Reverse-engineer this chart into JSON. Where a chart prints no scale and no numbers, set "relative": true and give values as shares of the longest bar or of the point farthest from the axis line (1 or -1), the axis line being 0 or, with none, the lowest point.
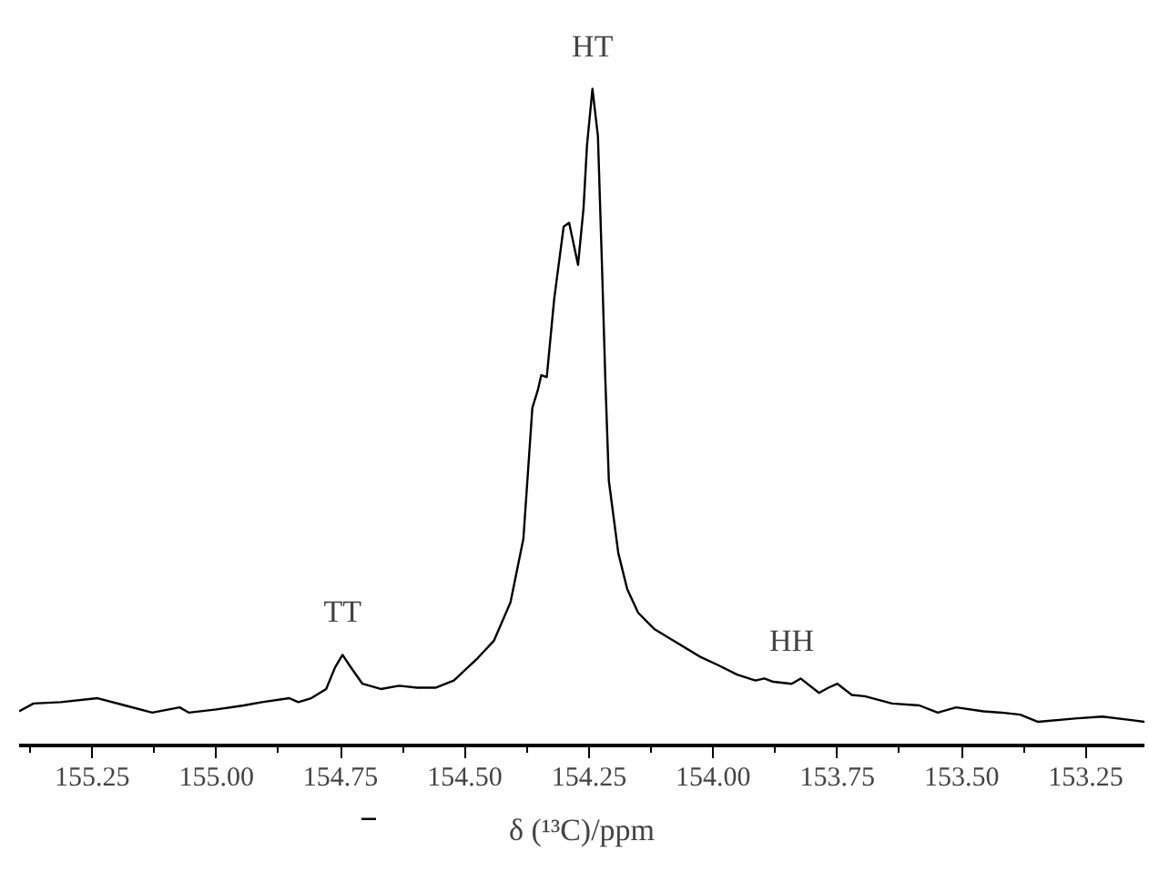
{
  "chart_data": {
    "type": "line",
    "relative": true,
    "xlabel": "δ (¹³C)/ppm",
    "grid": false,
    "marker": "none",
    "line_style": "solid",
    "xlim": [
      155.397,
      153.132
    ],
    "xticks": [
      {
        "value": 155.375,
        "label": null
      },
      {
        "value": 155.25,
        "label": "155.25"
      },
      {
        "value": 155.125,
        "label": null
      },
      {
        "value": 155.0,
        "label": "155.00"
      },
      {
        "value": 154.875,
        "label": null
      },
      {
        "value": 154.75,
        "label": "154.75"
      },
      {
        "value": 154.625,
        "label": null
      },
      {
        "value": 154.5,
        "label": "154.50"
      },
      {
        "value": 154.375,
        "label": null
      },
      {
        "value": 154.25,
        "label": "154.25"
      },
      {
        "value": 154.125,
        "label": null
      },
      {
        "value": 154.0,
        "label": "154.00"
      },
      {
        "value": 153.875,
        "label": null
      },
      {
        "value": 153.75,
        "label": "153.75"
      },
      {
        "value": 153.625,
        "label": null
      },
      {
        "value": 153.5,
        "label": "153.50"
      },
      {
        "value": 153.375,
        "label": null
      },
      {
        "value": 153.25,
        "label": "153.25"
      }
    ],
    "x": [
      155.397,
      155.368,
      155.313,
      155.239,
      155.184,
      155.129,
      155.074,
      155.055,
      155.0,
      154.945,
      154.908,
      154.853,
      154.835,
      154.809,
      154.779,
      154.761,
      154.746,
      154.732,
      154.706,
      154.669,
      154.632,
      154.596,
      154.559,
      154.522,
      154.474,
      154.441,
      154.408,
      154.382,
      154.364,
      154.353,
      154.346,
      154.335,
      154.32,
      154.301,
      154.29,
      154.279,
      154.272,
      154.261,
      154.254,
      154.243,
      154.232,
      154.224,
      154.217,
      154.21,
      154.191,
      154.173,
      154.151,
      154.118,
      154.081,
      154.026,
      153.989,
      153.952,
      153.915,
      153.897,
      153.879,
      153.842,
      153.824,
      153.787,
      153.768,
      153.75,
      153.721,
      153.695,
      153.64,
      153.585,
      153.548,
      153.511,
      153.456,
      153.419,
      153.382,
      153.346,
      153.272,
      153.217,
      153.162,
      153.132
    ],
    "series": [
      {
        "color": "#000000",
        "values": [
          0.052,
          0.064,
          0.066,
          0.072,
          0.061,
          0.05,
          0.058,
          0.05,
          0.055,
          0.061,
          0.066,
          0.072,
          0.066,
          0.072,
          0.086,
          0.119,
          0.138,
          0.122,
          0.094,
          0.086,
          0.091,
          0.088,
          0.088,
          0.099,
          0.133,
          0.16,
          0.218,
          0.315,
          0.514,
          0.541,
          0.564,
          0.561,
          0.68,
          0.79,
          0.796,
          0.757,
          0.732,
          0.818,
          0.914,
          1.0,
          0.928,
          0.735,
          0.555,
          0.403,
          0.293,
          0.238,
          0.202,
          0.177,
          0.16,
          0.135,
          0.122,
          0.108,
          0.099,
          0.102,
          0.097,
          0.094,
          0.102,
          0.08,
          0.088,
          0.094,
          0.077,
          0.075,
          0.064,
          0.061,
          0.05,
          0.058,
          0.052,
          0.05,
          0.047,
          0.036,
          0.041,
          0.044,
          0.039,
          0.036
        ]
      }
    ],
    "annotations": [
      {
        "text": "TT",
        "x": 154.746,
        "y": 0.138
      },
      {
        "text": "HT",
        "x": 154.243,
        "y": 1.0
      },
      {
        "text": "HH",
        "x": 153.842,
        "y": 0.094
      }
    ]
  }
}
